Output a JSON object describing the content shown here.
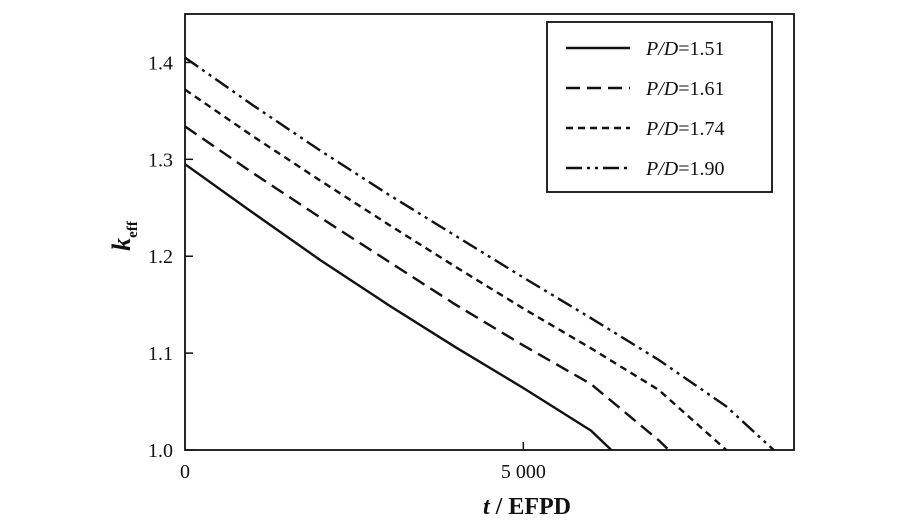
{
  "chart_data": {
    "type": "line",
    "xlabel": {
      "var": "t",
      "rest": " / EFPD"
    },
    "ylabel": {
      "var": "k",
      "sub": "eff"
    },
    "xlim": [
      0,
      9000
    ],
    "ylim": [
      1.0,
      1.45
    ],
    "xticks": [
      {
        "value": 0,
        "label": "0"
      },
      {
        "value": 5000,
        "label": "5 000"
      }
    ],
    "yticks": [
      {
        "value": 1.0,
        "label": "1.0"
      },
      {
        "value": 1.1,
        "label": "1.1"
      },
      {
        "value": 1.2,
        "label": "1.2"
      },
      {
        "value": 1.3,
        "label": "1.3"
      },
      {
        "value": 1.4,
        "label": "1.4"
      }
    ],
    "grid": false,
    "legend_position": "top-right",
    "series": [
      {
        "name": "P/D=1.51",
        "label_var": "P/D",
        "label_value": "=1.51",
        "style": "solid",
        "x": [
          0,
          1000,
          2000,
          3000,
          4000,
          5000,
          6000,
          6300
        ],
        "y": [
          1.295,
          1.245,
          1.196,
          1.15,
          1.106,
          1.064,
          1.02,
          1.0
        ]
      },
      {
        "name": "P/D=1.61",
        "label_var": "P/D",
        "label_value": "=1.61",
        "style": "dashed",
        "x": [
          0,
          1000,
          2000,
          3000,
          4000,
          5000,
          6000,
          7000,
          7150
        ],
        "y": [
          1.334,
          1.286,
          1.24,
          1.195,
          1.15,
          1.108,
          1.068,
          1.01,
          1.0
        ]
      },
      {
        "name": "P/D=1.74",
        "label_var": "P/D",
        "label_value": "=1.74",
        "style": "short-dashed",
        "x": [
          0,
          1000,
          2000,
          3000,
          4000,
          5000,
          6000,
          7000,
          8000
        ],
        "y": [
          1.372,
          1.324,
          1.278,
          1.233,
          1.189,
          1.146,
          1.105,
          1.062,
          1.0
        ]
      },
      {
        "name": "P/D=1.90",
        "label_var": "P/D",
        "label_value": "=1.90",
        "style": "dash-dot-dot",
        "x": [
          0,
          1000,
          2000,
          3000,
          4000,
          5000,
          6000,
          7000,
          8000,
          8700
        ],
        "y": [
          1.405,
          1.356,
          1.309,
          1.264,
          1.221,
          1.178,
          1.136,
          1.093,
          1.045,
          1.0
        ]
      }
    ]
  }
}
